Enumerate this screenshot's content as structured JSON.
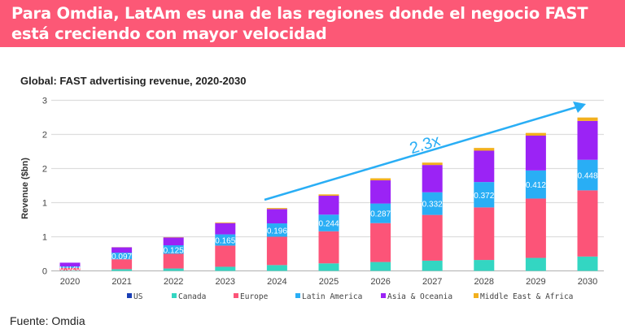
{
  "banner": {
    "line1": "Para Omdia, LatAm es una de las regiones donde el negocio FAST",
    "line2": "está creciendo con mayor velocidad"
  },
  "footer": "Fuente: Omdia",
  "chart_data": {
    "type": "bar",
    "stacked": true,
    "title": "Global: FAST advertising revenue, 2020-2030",
    "xlabel": "",
    "ylabel": "Revenue ($bn)",
    "ylim": [
      0,
      2.5
    ],
    "ytick_values": [
      0,
      0.5,
      1,
      1.5,
      2,
      2.5
    ],
    "ytick_labels": [
      "0",
      "1",
      "1",
      "2",
      "2",
      "3"
    ],
    "grid": true,
    "legend_position": "bottom",
    "categories": [
      "2020",
      "2021",
      "2022",
      "2023",
      "2024",
      "2025",
      "2026",
      "2027",
      "2028",
      "2029",
      "2030"
    ],
    "series": [
      {
        "name": "US",
        "color": "#1a3fb5",
        "values": [
          0,
          0,
          0,
          0,
          0,
          0,
          0,
          0,
          0,
          0,
          0
        ]
      },
      {
        "name": "Canada",
        "color": "#33d6c2",
        "values": [
          0.005,
          0.025,
          0.035,
          0.06,
          0.085,
          0.11,
          0.13,
          0.15,
          0.16,
          0.19,
          0.21
        ]
      },
      {
        "name": "Europe",
        "color": "#fc5478",
        "values": [
          0.04,
          0.145,
          0.215,
          0.31,
          0.415,
          0.47,
          0.57,
          0.67,
          0.77,
          0.87,
          0.97
        ]
      },
      {
        "name": "Latin America",
        "color": "#29aef5",
        "values": [
          0.02,
          0.097,
          0.125,
          0.165,
          0.196,
          0.244,
          0.287,
          0.332,
          0.372,
          0.412,
          0.448
        ],
        "data_labels": [
          "0.020",
          "0.097",
          "0.125",
          "0.165",
          "0.196",
          "0.244",
          "0.287",
          "0.332",
          "0.372",
          "0.412",
          "0.448"
        ]
      },
      {
        "name": "Asia & Oceania",
        "color": "#9b23f5",
        "values": [
          0.055,
          0.078,
          0.115,
          0.165,
          0.21,
          0.277,
          0.34,
          0.4,
          0.46,
          0.51,
          0.57
        ]
      },
      {
        "name": "Middle East & Africa",
        "color": "#f2b01e",
        "values": [
          0,
          0.002,
          0.004,
          0.01,
          0.015,
          0.02,
          0.03,
          0.035,
          0.04,
          0.04,
          0.05
        ]
      }
    ],
    "annotation": {
      "text": "2.3x",
      "color": "#29aef5",
      "type": "arrow"
    }
  }
}
